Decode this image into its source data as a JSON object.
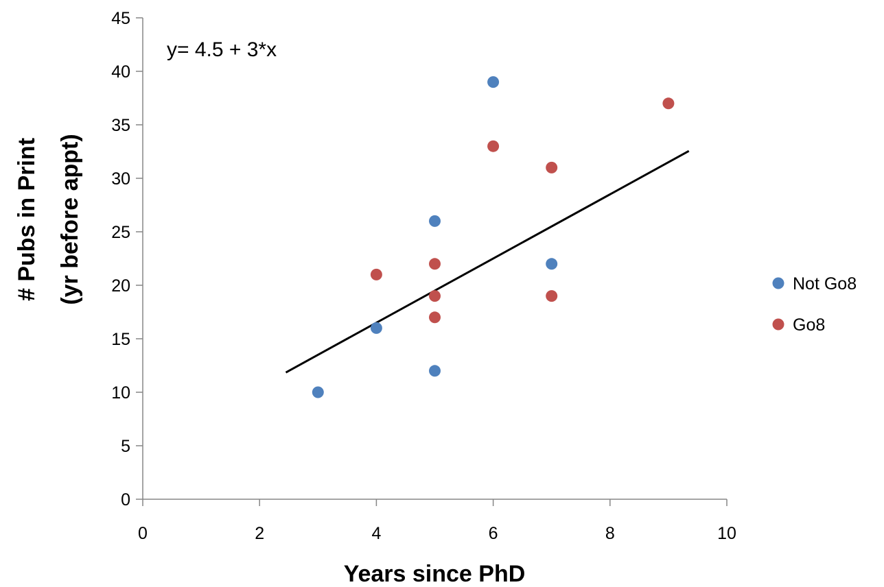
{
  "chart_data": {
    "type": "scatter",
    "title": "",
    "xlabel": "Years since PhD",
    "ylabel_lines": [
      "# Pubs in Print",
      "(yr before appt)"
    ],
    "xlim": [
      0,
      10
    ],
    "ylim": [
      0,
      45
    ],
    "xticks": [
      0,
      2,
      4,
      6,
      8,
      10
    ],
    "yticks": [
      0,
      5,
      10,
      15,
      20,
      25,
      30,
      35,
      40,
      45
    ],
    "grid": false,
    "legend_position": "right",
    "series": [
      {
        "name": "Not Go8",
        "color": "#4f81bd",
        "points": [
          [
            3,
            10
          ],
          [
            4,
            16
          ],
          [
            5,
            12
          ],
          [
            5,
            26
          ],
          [
            6,
            39
          ],
          [
            7,
            22
          ]
        ]
      },
      {
        "name": "Go8",
        "color": "#c0504d",
        "points": [
          [
            4,
            21
          ],
          [
            5,
            22
          ],
          [
            5,
            19
          ],
          [
            5,
            17
          ],
          [
            6,
            33
          ],
          [
            7,
            31
          ],
          [
            7,
            19
          ],
          [
            9,
            37
          ]
        ]
      }
    ],
    "trendline": {
      "intercept": 4.5,
      "slope": 3,
      "x_range": [
        2.45,
        9.35
      ],
      "color": "#000000"
    },
    "annotation": "y= 4.5 + 3*x"
  }
}
